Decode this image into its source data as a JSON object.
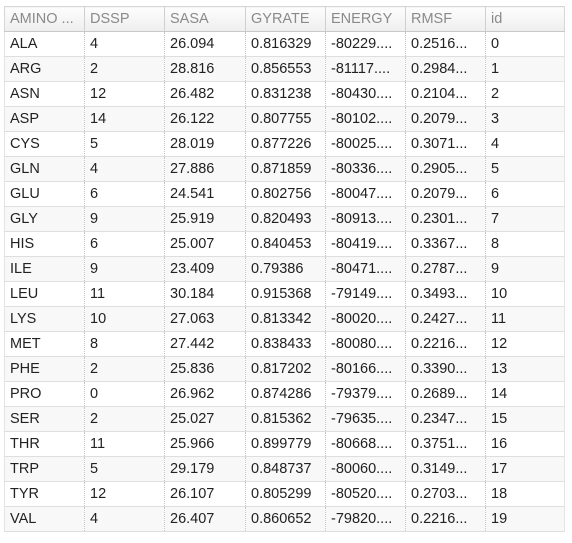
{
  "table": {
    "columns": [
      "AMINO ...",
      "DSSP",
      "SASA",
      "GYRATE",
      "ENERGY",
      "RMSF",
      "id"
    ],
    "rows": [
      [
        "ALA",
        "4",
        "26.094",
        "0.816329",
        "-80229....",
        "0.2516...",
        "0"
      ],
      [
        "ARG",
        "2",
        "28.816",
        "0.856553",
        "-81117....",
        "0.2984...",
        "1"
      ],
      [
        "ASN",
        "12",
        "26.482",
        "0.831238",
        "-80430....",
        "0.2104...",
        "2"
      ],
      [
        "ASP",
        "14",
        "26.122",
        "0.807755",
        "-80102....",
        "0.2079...",
        "3"
      ],
      [
        "CYS",
        "5",
        "28.019",
        "0.877226",
        "-80025....",
        "0.3071...",
        "4"
      ],
      [
        "GLN",
        "4",
        "27.886",
        "0.871859",
        "-80336....",
        "0.2905...",
        "5"
      ],
      [
        "GLU",
        "6",
        "24.541",
        "0.802756",
        "-80047....",
        "0.2079...",
        "6"
      ],
      [
        "GLY",
        "9",
        "25.919",
        "0.820493",
        "-80913....",
        "0.2301...",
        "7"
      ],
      [
        "HIS",
        "6",
        "25.007",
        "0.840453",
        "-80419....",
        "0.3367...",
        "8"
      ],
      [
        "ILE",
        "9",
        "23.409",
        "0.79386",
        "-80471....",
        "0.2787...",
        "9"
      ],
      [
        "LEU",
        "11",
        "30.184",
        "0.915368",
        "-79149....",
        "0.3493...",
        "10"
      ],
      [
        "LYS",
        "10",
        "27.063",
        "0.813342",
        "-80020....",
        "0.2427...",
        "11"
      ],
      [
        "MET",
        "8",
        "27.442",
        "0.838433",
        "-80080....",
        "0.2216...",
        "12"
      ],
      [
        "PHE",
        "2",
        "25.836",
        "0.817202",
        "-80166....",
        "0.3390...",
        "13"
      ],
      [
        "PRO",
        "0",
        "26.962",
        "0.874286",
        "-79379....",
        "0.2689...",
        "14"
      ],
      [
        "SER",
        "2",
        "25.027",
        "0.815362",
        "-79635....",
        "0.2347...",
        "15"
      ],
      [
        "THR",
        "11",
        "25.966",
        "0.899779",
        "-80668....",
        "0.3751...",
        "16"
      ],
      [
        "TRP",
        "5",
        "29.179",
        "0.848737",
        "-80060....",
        "0.3149...",
        "17"
      ],
      [
        "TYR",
        "12",
        "26.107",
        "0.805299",
        "-80520....",
        "0.2703...",
        "18"
      ],
      [
        "VAL",
        "4",
        "26.407",
        "0.860652",
        "-79820....",
        "0.2216...",
        "19"
      ]
    ]
  }
}
